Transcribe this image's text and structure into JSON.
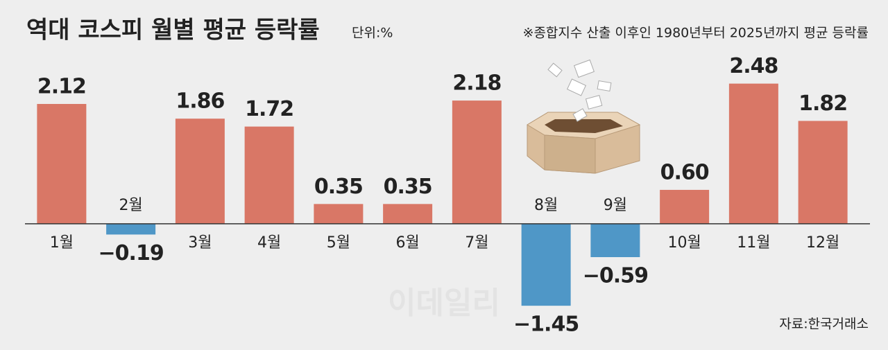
{
  "chart_data": {
    "type": "bar",
    "title": "역대 코스피 월별 평균 등락률",
    "unit": "단위:%",
    "note": "※종합지수 산출 이후인 1980년부터 2025년까지 평균 등락률",
    "source": "자료:한국거래소",
    "watermark": "이데일리",
    "categories": [
      "1월",
      "2월",
      "3월",
      "4월",
      "5월",
      "6월",
      "7월",
      "8월",
      "9월",
      "10월",
      "11월",
      "12월"
    ],
    "values": [
      2.12,
      -0.19,
      1.86,
      1.72,
      0.35,
      0.35,
      2.18,
      -1.45,
      -0.59,
      0.6,
      2.48,
      1.82
    ],
    "value_labels": [
      "2.12",
      "−0.19",
      "1.86",
      "1.72",
      "0.35",
      "0.35",
      "2.18",
      "−1.45",
      "−0.59",
      "0.60",
      "2.48",
      "1.82"
    ],
    "positive_color": "#d97766",
    "negative_color": "#4f97c7",
    "ylim": [
      -2,
      2.5
    ]
  }
}
